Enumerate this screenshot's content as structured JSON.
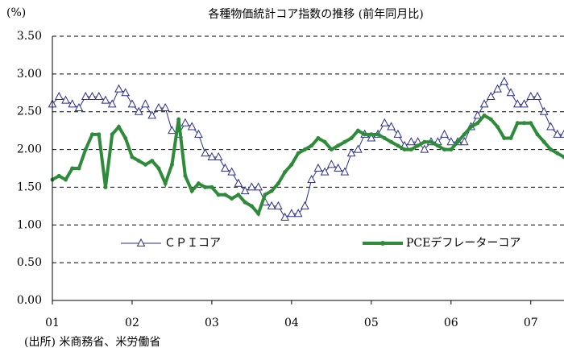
{
  "chart_data": {
    "type": "line",
    "title": "各種物価統計コア指数の推移 (前年同月比)",
    "y_label": "(%)",
    "source": "(出所) 米商務省、米労働省",
    "x": [
      0,
      1,
      2,
      3,
      4,
      5,
      6,
      7,
      8,
      9,
      10,
      11,
      12,
      13,
      14,
      15,
      16,
      17,
      18,
      19,
      20,
      21,
      22,
      23,
      24,
      25,
      26,
      27,
      28,
      29,
      30,
      31,
      32,
      33,
      34,
      35,
      36,
      37,
      38,
      39,
      40,
      41,
      42,
      43,
      44,
      45,
      46,
      47,
      48,
      49,
      50,
      51,
      52,
      53,
      54,
      55,
      56,
      57,
      58,
      59,
      60,
      61,
      62,
      63,
      64,
      65,
      66,
      67,
      68,
      69,
      70,
      71,
      72,
      73,
      74,
      75,
      76,
      77
    ],
    "xlim": [
      0,
      77
    ],
    "xticks": [
      {
        "value": 0,
        "label": "01"
      },
      {
        "value": 12,
        "label": "02"
      },
      {
        "value": 24,
        "label": "03"
      },
      {
        "value": 36,
        "label": "04"
      },
      {
        "value": 48,
        "label": "05"
      },
      {
        "value": 60,
        "label": "06"
      },
      {
        "value": 72,
        "label": "07"
      }
    ],
    "ylim": [
      0,
      3.5
    ],
    "yticks": [
      {
        "value": 0,
        "label": "0.00"
      },
      {
        "value": 0.5,
        "label": "0.50"
      },
      {
        "value": 1,
        "label": "1.00"
      },
      {
        "value": 1.5,
        "label": "1.50"
      },
      {
        "value": 2,
        "label": "2.00"
      },
      {
        "value": 2.5,
        "label": "2.50"
      },
      {
        "value": 3,
        "label": "3.00"
      },
      {
        "value": 3.5,
        "label": "3.50"
      }
    ],
    "grid": true,
    "series": [
      {
        "name": "ＣＰＩコア",
        "color": "#2b2f8f",
        "marker": "triangle",
        "values": [
          2.6,
          2.7,
          2.65,
          2.6,
          2.55,
          2.7,
          2.7,
          2.7,
          2.65,
          2.6,
          2.8,
          2.75,
          2.6,
          2.5,
          2.6,
          2.45,
          2.55,
          2.55,
          2.25,
          2.2,
          2.35,
          2.3,
          2.2,
          1.95,
          1.9,
          1.9,
          1.75,
          1.7,
          1.55,
          1.45,
          1.5,
          1.5,
          1.3,
          1.25,
          1.25,
          1.1,
          1.15,
          1.15,
          1.25,
          1.6,
          1.75,
          1.7,
          1.8,
          1.75,
          1.7,
          1.95,
          2.0,
          2.2,
          2.15,
          2.2,
          2.35,
          2.3,
          2.2,
          2.05,
          2.1,
          2.1,
          2.0,
          2.1,
          2.1,
          2.2,
          2.1,
          2.1,
          2.1,
          2.3,
          2.45,
          2.6,
          2.7,
          2.8,
          2.9,
          2.75,
          2.6,
          2.6,
          2.7,
          2.7,
          2.5,
          2.3,
          2.2,
          2.2
        ]
      },
      {
        "name": "PCEデフレーターコア",
        "color": "#2e8b3a",
        "marker": "dot",
        "values": [
          1.6,
          1.65,
          1.6,
          1.75,
          1.75,
          2.0,
          2.2,
          2.2,
          1.5,
          2.2,
          2.3,
          2.15,
          1.9,
          1.85,
          1.8,
          1.85,
          1.75,
          1.55,
          1.8,
          2.4,
          1.65,
          1.45,
          1.55,
          1.5,
          1.5,
          1.4,
          1.4,
          1.35,
          1.4,
          1.3,
          1.25,
          1.15,
          1.4,
          1.45,
          1.55,
          1.7,
          1.8,
          1.95,
          2.0,
          2.05,
          2.15,
          2.1,
          2.0,
          2.05,
          2.1,
          2.15,
          2.25,
          2.2,
          2.2,
          2.2,
          2.15,
          2.1,
          2.05,
          2.0,
          2.0,
          2.05,
          2.1,
          2.1,
          2.05,
          2.0,
          2.0,
          2.1,
          2.2,
          2.3,
          2.35,
          2.45,
          2.4,
          2.3,
          2.15,
          2.15,
          2.35,
          2.35,
          2.35,
          2.2,
          2.1,
          2.0,
          1.95,
          1.9
        ]
      }
    ]
  }
}
